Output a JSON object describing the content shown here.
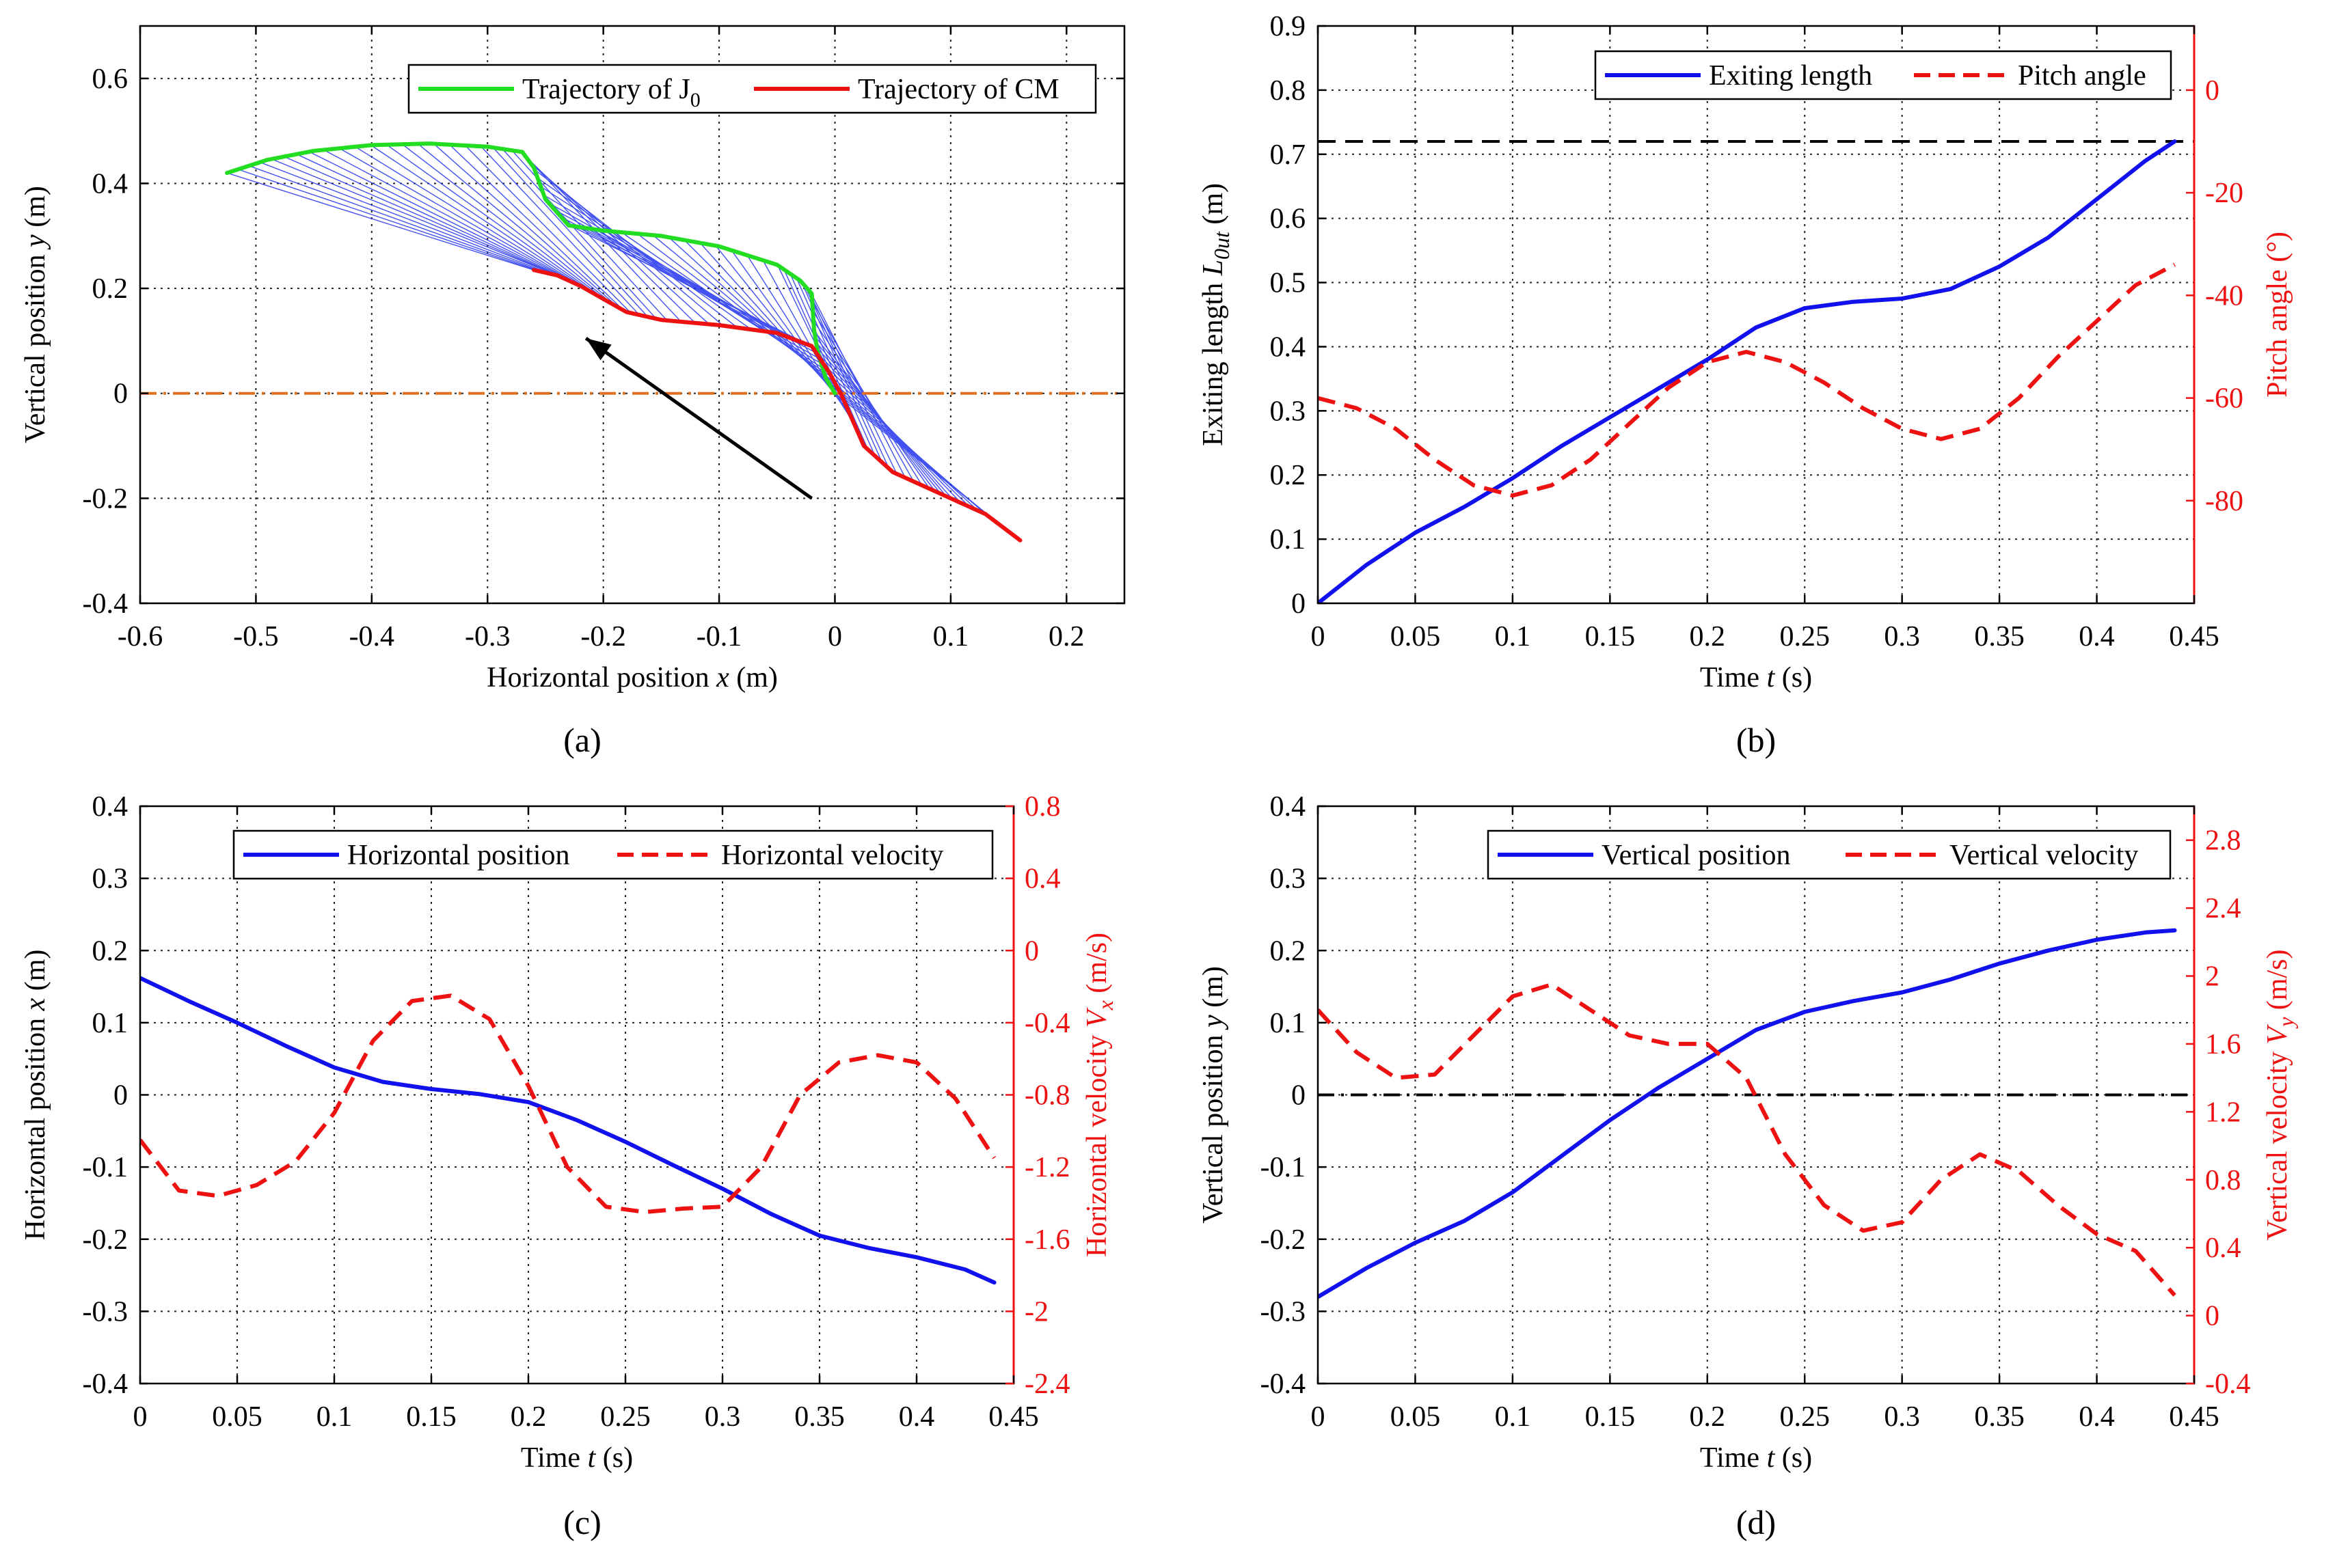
{
  "chart_data": [
    {
      "panel": "a",
      "caption": "(a)",
      "type": "line",
      "xlabel_main": "Horizontal position",
      "xlabel_var": "x",
      "xlabel_unit": "(m)",
      "ylabel_main": "Vertical position",
      "ylabel_var": "y",
      "ylabel_unit": "(m)",
      "xlim": [
        -0.6,
        0.25
      ],
      "ylim": [
        -0.4,
        0.7
      ],
      "xticks": [
        -0.6,
        -0.5,
        -0.4,
        -0.3,
        -0.2,
        -0.1,
        0,
        0.1,
        0.2
      ],
      "xtick_labels": [
        "-0.6",
        "-0.5",
        "-0.4",
        "-0.3",
        "-0.2",
        "-0.1",
        "0",
        "0.1",
        "0.2"
      ],
      "yticks": [
        -0.4,
        -0.2,
        0,
        0.2,
        0.4,
        0.6
      ],
      "ytick_labels": [
        "-0.4",
        "-0.2",
        "0",
        "0.2",
        "0.4",
        "0.6"
      ],
      "grid": true,
      "legend_position": "top-right",
      "series": [
        {
          "name": "Trajectory of J",
          "name_sub": "0",
          "color": "#22dd22",
          "style": "solid",
          "x": [
            -0.525,
            -0.49,
            -0.45,
            -0.4,
            -0.35,
            -0.3,
            -0.27,
            -0.26,
            -0.25,
            -0.23,
            -0.2,
            -0.15,
            -0.1,
            -0.05,
            -0.03,
            -0.02,
            -0.018,
            -0.015,
            -0.008,
            0.0
          ],
          "y": [
            0.42,
            0.445,
            0.462,
            0.473,
            0.476,
            0.47,
            0.46,
            0.43,
            0.37,
            0.32,
            0.31,
            0.3,
            0.28,
            0.245,
            0.215,
            0.19,
            0.12,
            0.08,
            0.03,
            0.0
          ]
        },
        {
          "name": "Trajectory of CM",
          "color": "#ee1111",
          "style": "solid",
          "x": [
            -0.26,
            -0.24,
            -0.22,
            -0.2,
            -0.18,
            -0.15,
            -0.1,
            -0.05,
            -0.02,
            -0.005,
            0.005,
            0.015,
            0.025,
            0.05,
            0.08,
            0.1,
            0.13,
            0.16
          ],
          "y": [
            0.235,
            0.225,
            0.205,
            0.18,
            0.155,
            0.14,
            0.13,
            0.115,
            0.09,
            0.04,
            0.0,
            -0.05,
            -0.1,
            -0.15,
            -0.18,
            -0.2,
            -0.23,
            -0.28
          ]
        }
      ],
      "reference_line": {
        "y": 0,
        "color": "#e07020",
        "style": "dash-dot"
      },
      "link_color": "#2233ee",
      "arrow": {
        "from": [
          -0.02,
          -0.2
        ],
        "to": [
          -0.215,
          0.105
        ],
        "color": "#000000"
      }
    },
    {
      "panel": "b",
      "caption": "(b)",
      "type": "line",
      "xlabel_main": "Time",
      "xlabel_var": "t",
      "xlabel_unit": "(s)",
      "ylabel_left_main": "Exiting length",
      "ylabel_left_var": "L",
      "ylabel_left_sub": "0ut",
      "ylabel_left_unit": "(m)",
      "ylabel_right": "Pitch angle (°)",
      "xlim": [
        0,
        0.45
      ],
      "ylim_left": [
        0,
        0.9
      ],
      "ylim_right": [
        -100,
        12.5
      ],
      "xticks": [
        0,
        0.05,
        0.1,
        0.15,
        0.2,
        0.25,
        0.3,
        0.35,
        0.4,
        0.45
      ],
      "xtick_labels": [
        "0",
        "0.05",
        "0.1",
        "0.15",
        "0.2",
        "0.25",
        "0.3",
        "0.35",
        "0.4",
        "0.45"
      ],
      "yticks_left": [
        0,
        0.1,
        0.2,
        0.3,
        0.4,
        0.5,
        0.6,
        0.7,
        0.8,
        0.9
      ],
      "ytick_labels_left": [
        "0",
        "0.1",
        "0.2",
        "0.3",
        "0.4",
        "0.5",
        "0.6",
        "0.7",
        "0.8",
        "0.9"
      ],
      "yticks_right": [
        -80,
        -60,
        -40,
        -20,
        0
      ],
      "ytick_labels_right": [
        "-80",
        "-60",
        "-40",
        "-20",
        "0"
      ],
      "grid": true,
      "legend_position": "top-right",
      "series": [
        {
          "name": "Exiting length",
          "axis": "left",
          "color": "#1111ee",
          "style": "solid",
          "x": [
            0,
            0.025,
            0.05,
            0.075,
            0.1,
            0.125,
            0.15,
            0.175,
            0.2,
            0.225,
            0.25,
            0.275,
            0.3,
            0.325,
            0.35,
            0.375,
            0.4,
            0.425,
            0.44
          ],
          "y": [
            0,
            0.06,
            0.11,
            0.15,
            0.195,
            0.245,
            0.29,
            0.335,
            0.38,
            0.43,
            0.46,
            0.47,
            0.475,
            0.49,
            0.525,
            0.57,
            0.63,
            0.69,
            0.72
          ]
        },
        {
          "name": "Pitch angle",
          "axis": "right",
          "color": "#ee1111",
          "style": "dashed",
          "x": [
            0,
            0.02,
            0.04,
            0.06,
            0.08,
            0.1,
            0.12,
            0.14,
            0.16,
            0.18,
            0.2,
            0.22,
            0.24,
            0.26,
            0.28,
            0.3,
            0.32,
            0.34,
            0.36,
            0.38,
            0.4,
            0.42,
            0.44
          ],
          "y": [
            -60,
            -62,
            -66,
            -72,
            -77,
            -79,
            -77,
            -72,
            -65,
            -58,
            -53,
            -51,
            -53,
            -57,
            -62,
            -66,
            -68,
            -66,
            -60,
            -52,
            -45,
            -38,
            -34
          ]
        }
      ],
      "reference_line": {
        "y": 0.72,
        "axis": "left",
        "color": "#000000",
        "style": "dashed"
      }
    },
    {
      "panel": "c",
      "caption": "(c)",
      "type": "line",
      "xlabel_main": "Time",
      "xlabel_var": "t",
      "xlabel_unit": "(s)",
      "ylabel_left_main": "Horizontal position",
      "ylabel_left_var": "x",
      "ylabel_left_unit": "(m)",
      "ylabel_right_main": "Horizontal velocity",
      "ylabel_right_var": "V",
      "ylabel_right_sub": "x",
      "ylabel_right_unit": "(m/s)",
      "xlim": [
        0,
        0.45
      ],
      "ylim_left": [
        -0.4,
        0.4
      ],
      "ylim_right": [
        -2.4,
        0.8
      ],
      "xticks": [
        0,
        0.05,
        0.1,
        0.15,
        0.2,
        0.25,
        0.3,
        0.35,
        0.4,
        0.45
      ],
      "xtick_labels": [
        "0",
        "0.05",
        "0.1",
        "0.15",
        "0.2",
        "0.25",
        "0.3",
        "0.35",
        "0.4",
        "0.45"
      ],
      "yticks_left": [
        -0.4,
        -0.3,
        -0.2,
        -0.1,
        0,
        0.1,
        0.2,
        0.3,
        0.4
      ],
      "ytick_labels_left": [
        "-0.4",
        "-0.3",
        "-0.2",
        "-0.1",
        "0",
        "0.1",
        "0.2",
        "0.3",
        "0.4"
      ],
      "yticks_right": [
        -2.4,
        -2,
        -1.6,
        -1.2,
        -0.8,
        -0.4,
        0,
        0.4,
        0.8
      ],
      "ytick_labels_right": [
        "-2.4",
        "-2",
        "-1.6",
        "-1.2",
        "-0.8",
        "-0.4",
        "0",
        "0.4",
        "0.8"
      ],
      "grid": true,
      "legend_position": "top-right",
      "series": [
        {
          "name": "Horizontal position",
          "axis": "left",
          "color": "#1111ee",
          "style": "solid",
          "x": [
            0,
            0.025,
            0.05,
            0.075,
            0.1,
            0.125,
            0.15,
            0.175,
            0.2,
            0.225,
            0.25,
            0.275,
            0.3,
            0.325,
            0.35,
            0.375,
            0.4,
            0.425,
            0.44
          ],
          "y": [
            0.162,
            0.13,
            0.1,
            0.068,
            0.038,
            0.018,
            0.008,
            0.001,
            -0.01,
            -0.035,
            -0.065,
            -0.098,
            -0.13,
            -0.165,
            -0.195,
            -0.212,
            -0.225,
            -0.242,
            -0.26
          ]
        },
        {
          "name": "Horizontal velocity",
          "axis": "right",
          "color": "#ee1111",
          "style": "dashed",
          "x": [
            0,
            0.02,
            0.04,
            0.06,
            0.08,
            0.1,
            0.12,
            0.14,
            0.16,
            0.18,
            0.2,
            0.22,
            0.24,
            0.26,
            0.28,
            0.3,
            0.32,
            0.34,
            0.36,
            0.38,
            0.4,
            0.42,
            0.44
          ],
          "y": [
            -1.05,
            -1.33,
            -1.36,
            -1.3,
            -1.17,
            -0.9,
            -0.5,
            -0.28,
            -0.25,
            -0.38,
            -0.75,
            -1.2,
            -1.42,
            -1.45,
            -1.43,
            -1.42,
            -1.2,
            -0.8,
            -0.62,
            -0.58,
            -0.62,
            -0.82,
            -1.15
          ]
        }
      ]
    },
    {
      "panel": "d",
      "caption": "(d)",
      "type": "line",
      "xlabel_main": "Time",
      "xlabel_var": "t",
      "xlabel_unit": "(s)",
      "ylabel_left_main": "Vertical position",
      "ylabel_left_var": "y",
      "ylabel_left_unit": "(m)",
      "ylabel_right_main": "Vertical velocity",
      "ylabel_right_var": "V",
      "ylabel_right_sub": "y",
      "ylabel_right_unit": "(m/s)",
      "xlim": [
        0,
        0.45
      ],
      "ylim_left": [
        -0.4,
        0.4
      ],
      "ylim_right": [
        -0.4,
        3.0
      ],
      "xticks": [
        0,
        0.05,
        0.1,
        0.15,
        0.2,
        0.25,
        0.3,
        0.35,
        0.4,
        0.45
      ],
      "xtick_labels": [
        "0",
        "0.05",
        "0.1",
        "0.15",
        "0.2",
        "0.25",
        "0.3",
        "0.35",
        "0.4",
        "0.45"
      ],
      "yticks_left": [
        -0.4,
        -0.3,
        -0.2,
        -0.1,
        0,
        0.1,
        0.2,
        0.3,
        0.4
      ],
      "ytick_labels_left": [
        "-0.4",
        "-0.3",
        "-0.2",
        "-0.1",
        "0",
        "0.1",
        "0.2",
        "0.3",
        "0.4"
      ],
      "yticks_right": [
        -0.4,
        0,
        0.4,
        0.8,
        1.2,
        1.6,
        2,
        2.4,
        2.8
      ],
      "ytick_labels_right": [
        "-0.4",
        "0",
        "0.4",
        "0.8",
        "1.2",
        "1.6",
        "2",
        "2.4",
        "2.8"
      ],
      "grid": true,
      "legend_position": "top-right",
      "series": [
        {
          "name": "Vertical position",
          "axis": "left",
          "color": "#1111ee",
          "style": "solid",
          "x": [
            0,
            0.025,
            0.05,
            0.075,
            0.1,
            0.125,
            0.15,
            0.175,
            0.2,
            0.225,
            0.25,
            0.275,
            0.3,
            0.325,
            0.35,
            0.375,
            0.4,
            0.425,
            0.44
          ],
          "y": [
            -0.28,
            -0.24,
            -0.205,
            -0.175,
            -0.135,
            -0.085,
            -0.035,
            0.01,
            0.05,
            0.09,
            0.115,
            0.13,
            0.142,
            0.16,
            0.182,
            0.2,
            0.215,
            0.225,
            0.228
          ]
        },
        {
          "name": "Vertical velocity",
          "axis": "right",
          "color": "#ee1111",
          "style": "dashed",
          "x": [
            0,
            0.02,
            0.04,
            0.06,
            0.08,
            0.1,
            0.12,
            0.14,
            0.16,
            0.18,
            0.2,
            0.22,
            0.24,
            0.26,
            0.28,
            0.3,
            0.32,
            0.34,
            0.36,
            0.38,
            0.4,
            0.42,
            0.44
          ],
          "y": [
            1.8,
            1.55,
            1.4,
            1.42,
            1.65,
            1.88,
            1.95,
            1.8,
            1.65,
            1.6,
            1.6,
            1.4,
            0.95,
            0.65,
            0.5,
            0.55,
            0.8,
            0.95,
            0.85,
            0.65,
            0.48,
            0.38,
            0.12
          ]
        }
      ],
      "reference_line": {
        "y": 0,
        "axis": "left",
        "color": "#000000",
        "style": "dash-dot"
      }
    }
  ]
}
